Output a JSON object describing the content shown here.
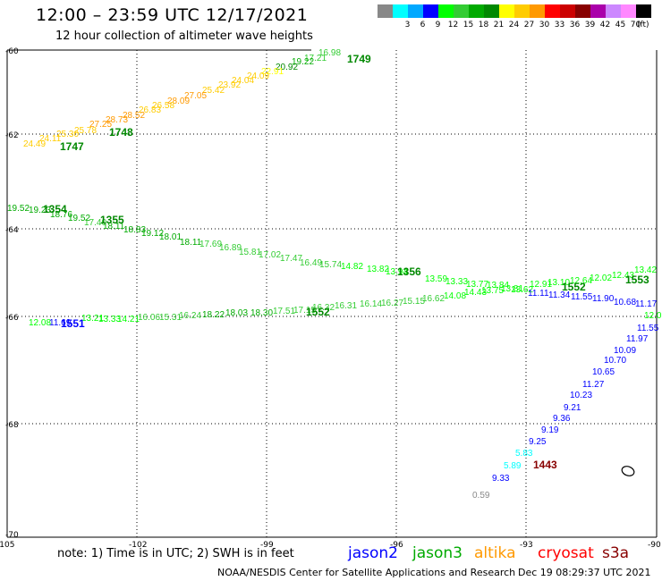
{
  "header": {
    "title": "12:00 – 23:59 UTC 12/17/2021",
    "subtitle": "12 hour collection of altimeter wave heights"
  },
  "legend": {
    "unit": "(ft)",
    "items": [
      {
        "label": "",
        "color": "#888888"
      },
      {
        "label": "3",
        "color": "#00ffff"
      },
      {
        "label": "6",
        "color": "#00a8ff"
      },
      {
        "label": "9",
        "color": "#0000ff"
      },
      {
        "label": "12",
        "color": "#00ff00"
      },
      {
        "label": "15",
        "color": "#33cc33"
      },
      {
        "label": "18",
        "color": "#00aa00"
      },
      {
        "label": "21",
        "color": "#008800"
      },
      {
        "label": "24",
        "color": "#ffff00"
      },
      {
        "label": "27",
        "color": "#ffcc00"
      },
      {
        "label": "30",
        "color": "#ff9900"
      },
      {
        "label": "33",
        "color": "#ff0000"
      },
      {
        "label": "36",
        "color": "#cc0000"
      },
      {
        "label": "39",
        "color": "#880000"
      },
      {
        "label": "42",
        "color": "#aa00aa"
      },
      {
        "label": "45",
        "color": "#cc88ff"
      },
      {
        "label": "70",
        "color": "#ff88ff"
      },
      {
        "label": "",
        "color": "#000000"
      }
    ]
  },
  "axes": {
    "lat_labels": [
      "-60",
      "-62",
      "-64",
      "-66",
      "-68",
      "-70"
    ],
    "lon_labels": [
      "-105",
      "-102",
      "-99",
      "-96",
      "-93",
      "-90"
    ]
  },
  "tracks": [
    {
      "id": "1747-1749",
      "pass_labels": [
        {
          "text": "1749",
          "color": "#008800"
        },
        {
          "text": "1748",
          "color": "#008800"
        },
        {
          "text": "1747",
          "color": "#008800"
        }
      ],
      "values": [
        {
          "t": "16.98",
          "c": "#33cc33"
        },
        {
          "t": "17.21",
          "c": "#33cc33"
        },
        {
          "t": "19.22",
          "c": "#00aa00"
        },
        {
          "t": "20.92",
          "c": "#008800"
        },
        {
          "t": "22.91",
          "c": "#ffff00"
        },
        {
          "t": "24.09",
          "c": "#ffcc00"
        },
        {
          "t": "24.04",
          "c": "#ffcc00"
        },
        {
          "t": "23.92",
          "c": "#ffcc00"
        },
        {
          "t": "25.42",
          "c": "#ffcc00"
        },
        {
          "t": "27.05",
          "c": "#ff9900"
        },
        {
          "t": "28.09",
          "c": "#ff9900"
        },
        {
          "t": "26.58",
          "c": "#ffcc00"
        },
        {
          "t": "26.83",
          "c": "#ffcc00"
        },
        {
          "t": "28.52",
          "c": "#ff9900"
        },
        {
          "t": "28.73",
          "c": "#ff9900"
        },
        {
          "t": "27.25",
          "c": "#ff9900"
        },
        {
          "t": "25.78",
          "c": "#ffcc00"
        },
        {
          "t": "25.30",
          "c": "#ffcc00"
        },
        {
          "t": "24.11",
          "c": "#ffcc00"
        },
        {
          "t": "24.49",
          "c": "#ffcc00"
        }
      ]
    },
    {
      "id": "1354-1553",
      "pass_labels": [
        {
          "text": "1354",
          "color": "#008800"
        },
        {
          "text": "1355",
          "color": "#008800"
        },
        {
          "text": "1356",
          "color": "#008800"
        },
        {
          "text": "1552",
          "color": "#008800"
        },
        {
          "text": "1553",
          "color": "#008800"
        }
      ],
      "values": [
        {
          "t": "19.52",
          "c": "#00aa00"
        },
        {
          "t": "19.23",
          "c": "#00aa00"
        },
        {
          "t": "18.76",
          "c": "#00aa00"
        },
        {
          "t": "19.52",
          "c": "#00aa00"
        },
        {
          "t": "17.40",
          "c": "#33cc33"
        },
        {
          "t": "18.11",
          "c": "#00aa00"
        },
        {
          "t": "18.83",
          "c": "#00aa00"
        },
        {
          "t": "19.12",
          "c": "#00aa00"
        },
        {
          "t": "18.01",
          "c": "#00aa00"
        },
        {
          "t": "18.11",
          "c": "#00aa00"
        },
        {
          "t": "17.69",
          "c": "#33cc33"
        },
        {
          "t": "16.89",
          "c": "#33cc33"
        },
        {
          "t": "15.81",
          "c": "#33cc33"
        },
        {
          "t": "17.02",
          "c": "#33cc33"
        },
        {
          "t": "17.47",
          "c": "#33cc33"
        },
        {
          "t": "16.49",
          "c": "#33cc33"
        },
        {
          "t": "15.74",
          "c": "#33cc33"
        },
        {
          "t": "14.82",
          "c": "#00ff00"
        },
        {
          "t": "13.82",
          "c": "#00ff00"
        },
        {
          "t": "13.94",
          "c": "#00ff00"
        },
        {
          "t": "13.59",
          "c": "#00ff00"
        },
        {
          "t": "13.33",
          "c": "#00ff00"
        },
        {
          "t": "13.77",
          "c": "#00ff00"
        },
        {
          "t": "13.84",
          "c": "#00ff00"
        },
        {
          "t": "12.91",
          "c": "#00ff00"
        },
        {
          "t": "13.10",
          "c": "#00ff00"
        },
        {
          "t": "12.64",
          "c": "#00ff00"
        },
        {
          "t": "12.02",
          "c": "#00ff00"
        },
        {
          "t": "12.43",
          "c": "#00ff00"
        },
        {
          "t": "13.42",
          "c": "#00ff00"
        }
      ]
    },
    {
      "id": "1551-1552",
      "pass_labels": [
        {
          "text": "1551",
          "color": "#0000ff"
        },
        {
          "text": "1552",
          "color": "#008800"
        }
      ],
      "values": [
        {
          "t": "12.08",
          "c": "#00ff00"
        },
        {
          "t": "11.69",
          "c": "#0000ff"
        },
        {
          "t": "13.21",
          "c": "#00ff00"
        },
        {
          "t": "13.33",
          "c": "#00ff00"
        },
        {
          "t": "14.21",
          "c": "#00ff00"
        },
        {
          "t": "16.06",
          "c": "#33cc33"
        },
        {
          "t": "15.31",
          "c": "#33cc33"
        },
        {
          "t": "16.24",
          "c": "#33cc33"
        },
        {
          "t": "18.22",
          "c": "#00aa00"
        },
        {
          "t": "18.03",
          "c": "#00aa00"
        },
        {
          "t": "18.30",
          "c": "#00aa00"
        },
        {
          "t": "17.51",
          "c": "#33cc33"
        },
        {
          "t": "17.15",
          "c": "#33cc33"
        },
        {
          "t": "16.32",
          "c": "#33cc33"
        },
        {
          "t": "16.31",
          "c": "#33cc33"
        },
        {
          "t": "16.14",
          "c": "#33cc33"
        },
        {
          "t": "16.27",
          "c": "#33cc33"
        },
        {
          "t": "15.15",
          "c": "#33cc33"
        },
        {
          "t": "16.62",
          "c": "#33cc33"
        },
        {
          "t": "14.08",
          "c": "#00ff00"
        },
        {
          "t": "14.43",
          "c": "#00ff00"
        },
        {
          "t": "13.75",
          "c": "#00ff00"
        },
        {
          "t": "13.81",
          "c": "#00ff00"
        },
        {
          "t": "13.62",
          "c": "#00ff00"
        },
        {
          "t": "11.11",
          "c": "#0000ff"
        },
        {
          "t": "11.34",
          "c": "#0000ff"
        },
        {
          "t": "11.55",
          "c": "#0000ff"
        },
        {
          "t": "11.90",
          "c": "#0000ff"
        },
        {
          "t": "10.68",
          "c": "#0000ff"
        },
        {
          "t": "11.17",
          "c": "#0000ff"
        },
        {
          "t": "12.06",
          "c": "#00ff00"
        }
      ]
    },
    {
      "id": "1443",
      "pass_labels": [
        {
          "text": "1443",
          "color": "#880000"
        }
      ],
      "values": [
        {
          "t": "11.55",
          "c": "#0000ff"
        },
        {
          "t": "11.97",
          "c": "#0000ff"
        },
        {
          "t": "10.09",
          "c": "#0000ff"
        },
        {
          "t": "10.70",
          "c": "#0000ff"
        },
        {
          "t": "10.65",
          "c": "#0000ff"
        },
        {
          "t": "11.27",
          "c": "#0000ff"
        },
        {
          "t": "10.23",
          "c": "#0000ff"
        },
        {
          "t": "9.21",
          "c": "#0000ff"
        },
        {
          "t": "9.36",
          "c": "#0000ff"
        },
        {
          "t": "9.19",
          "c": "#0000ff"
        },
        {
          "t": "9.25",
          "c": "#0000ff"
        },
        {
          "t": "5.83",
          "c": "#00ffff"
        },
        {
          "t": "5.89",
          "c": "#00ffff"
        },
        {
          "t": "9.33",
          "c": "#0000ff"
        },
        {
          "t": "0.59",
          "c": "#888888"
        }
      ]
    }
  ],
  "note": "note: 1) Time is in UTC; 2) SWH is in feet",
  "satellites": [
    {
      "name": "jason2",
      "color": "#0000ff"
    },
    {
      "name": "jason3",
      "color": "#00aa00"
    },
    {
      "name": "altika",
      "color": "#ff9900"
    },
    {
      "name": "cryosat",
      "color": "#ff0000"
    },
    {
      "name": "s3a",
      "color": "#880000"
    }
  ],
  "footer": {
    "org": "NOAA/NESDIS Center for Satellite Applications and Research",
    "timestamp": "Dec 19 08:29:37 UTC 2021"
  }
}
